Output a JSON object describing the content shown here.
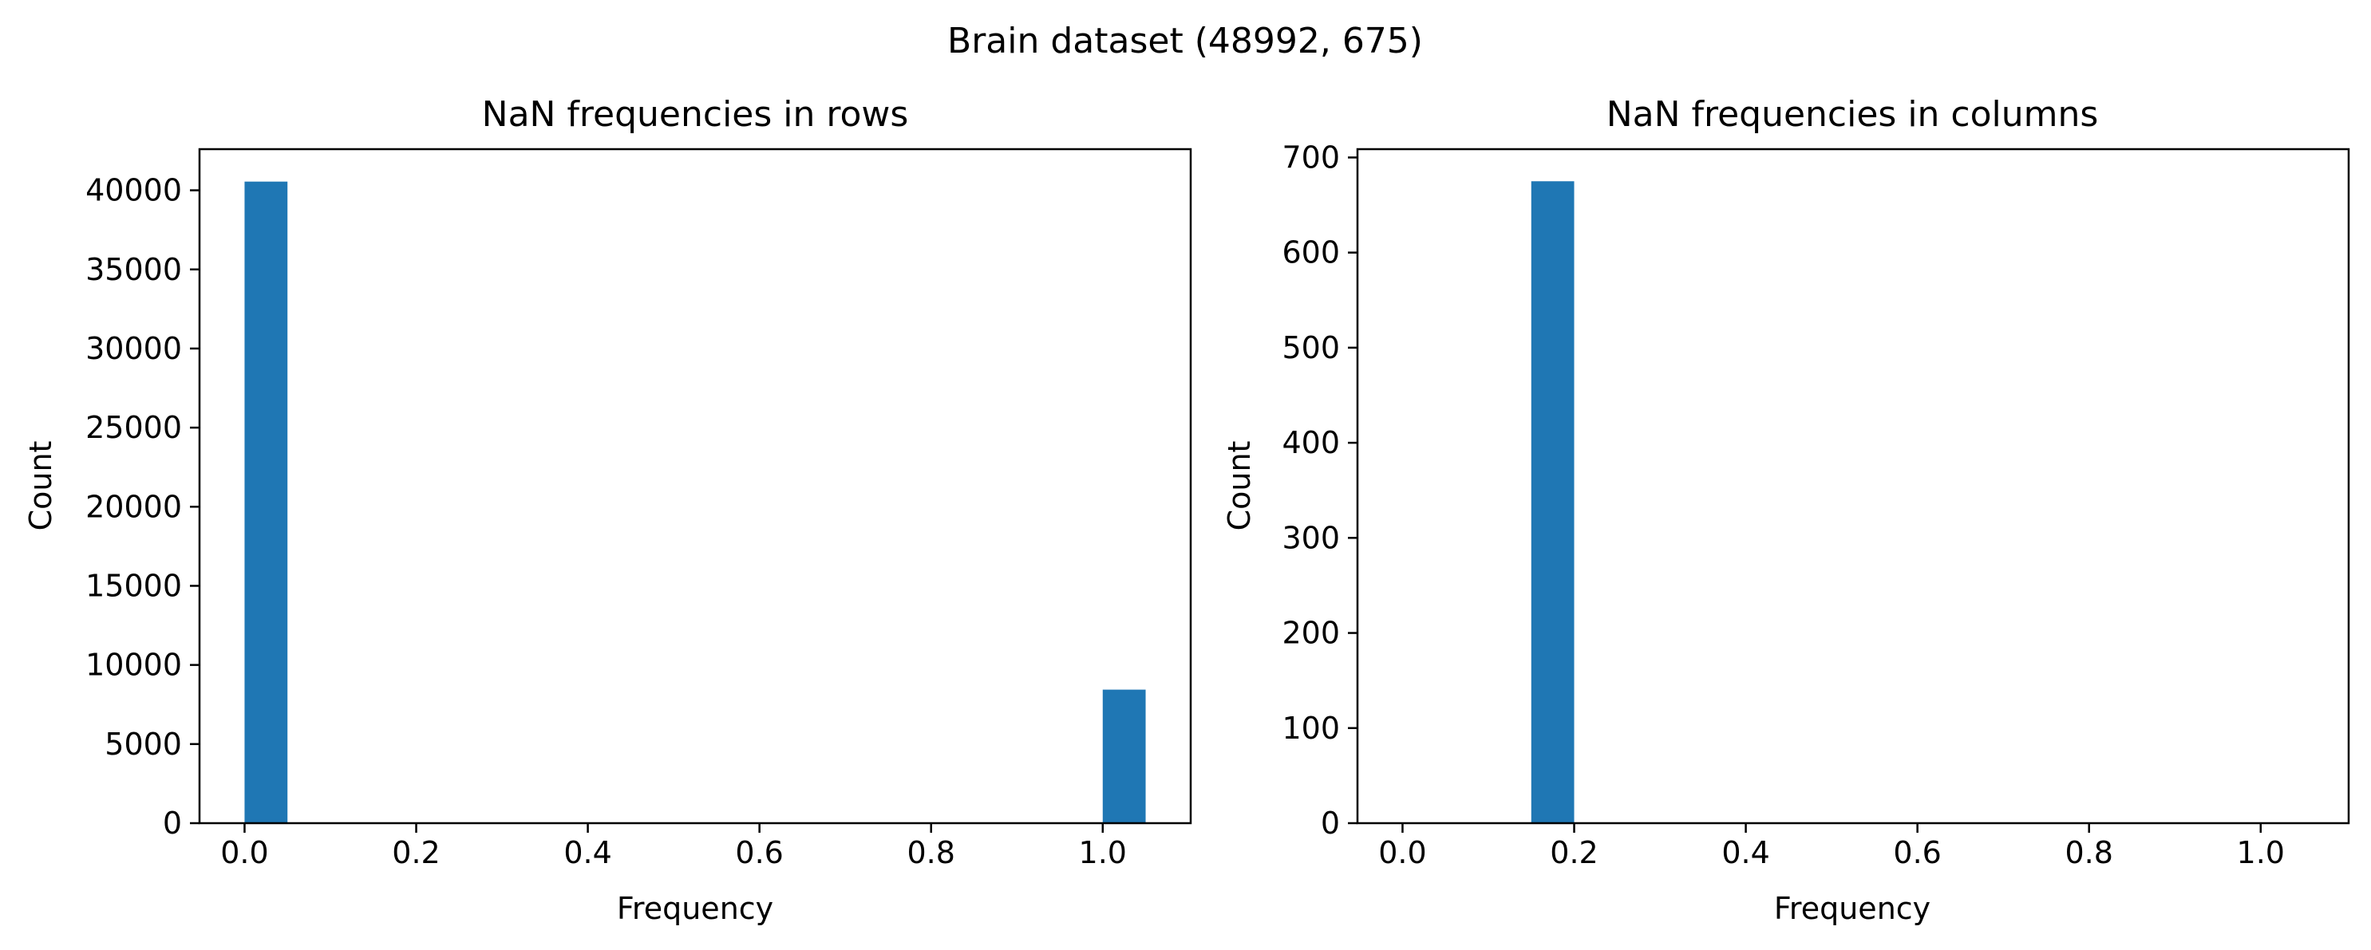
{
  "figure": {
    "suptitle": "Brain dataset (48992, 675)"
  },
  "chart_data": [
    {
      "type": "bar",
      "title": "NaN frequencies in rows",
      "xlabel": "Frequency",
      "ylabel": "Count",
      "xlim": [
        -0.0525,
        1.1025
      ],
      "ylim": [
        0,
        42600
      ],
      "xticks": [
        0.0,
        0.2,
        0.4,
        0.6,
        0.8,
        1.0
      ],
      "xtick_labels": [
        "0.0",
        "0.2",
        "0.4",
        "0.6",
        "0.8",
        "1.0"
      ],
      "yticks": [
        0,
        5000,
        10000,
        15000,
        20000,
        25000,
        30000,
        35000,
        40000
      ],
      "ytick_labels": [
        "0",
        "5000",
        "10000",
        "15000",
        "20000",
        "25000",
        "30000",
        "35000",
        "40000"
      ],
      "bin_width": 0.05,
      "bars": [
        {
          "x": 0.0,
          "value": 40550
        },
        {
          "x": 1.0,
          "value": 8440
        }
      ],
      "bar_color": "#1f77b4",
      "grid": false,
      "legend": "none"
    },
    {
      "type": "bar",
      "title": "NaN frequencies in columns",
      "xlabel": "Frequency",
      "ylabel": "Count",
      "xlim": [
        -0.0525,
        1.1025
      ],
      "ylim": [
        0,
        708.75
      ],
      "xticks": [
        0.0,
        0.2,
        0.4,
        0.6,
        0.8,
        1.0
      ],
      "xtick_labels": [
        "0.0",
        "0.2",
        "0.4",
        "0.6",
        "0.8",
        "1.0"
      ],
      "yticks": [
        0,
        100,
        200,
        300,
        400,
        500,
        600,
        700
      ],
      "ytick_labels": [
        "0",
        "100",
        "200",
        "300",
        "400",
        "500",
        "600",
        "700"
      ],
      "bin_width": 0.05,
      "bars": [
        {
          "x": 0.15,
          "value": 675
        }
      ],
      "bar_color": "#1f77b4",
      "grid": false,
      "legend": "none"
    }
  ]
}
